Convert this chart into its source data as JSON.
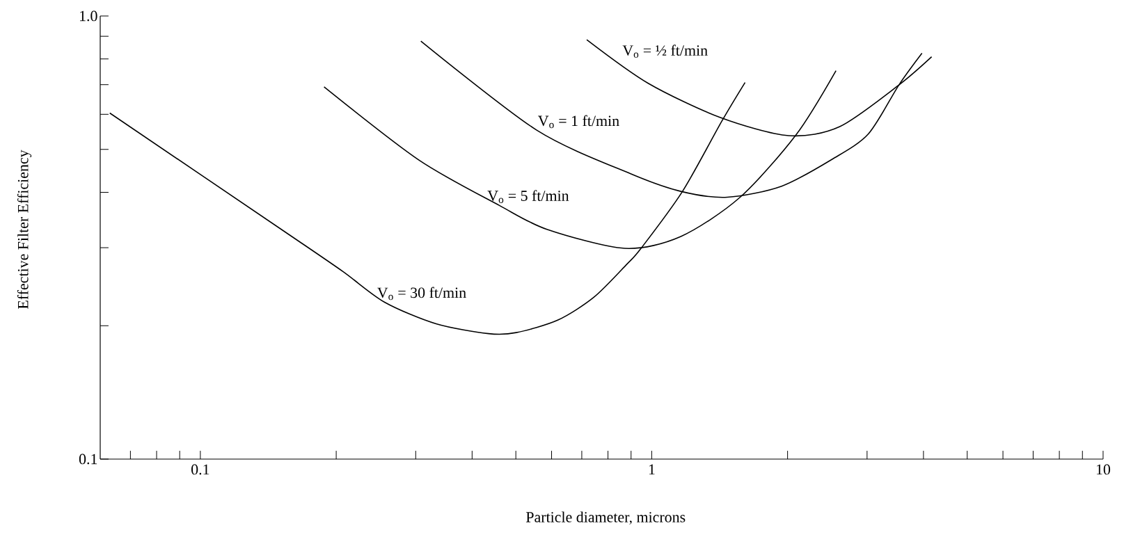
{
  "chart_data": {
    "type": "line",
    "log": "xy",
    "xlabel": "Particle diameter, microns",
    "ylabel": "Effective Filter Efficiency",
    "xlim": [
      0.06,
      10
    ],
    "ylim": [
      0.1,
      1.0
    ],
    "xticks": [
      {
        "value": 0.07,
        "label": null
      },
      {
        "value": 0.08,
        "label": null
      },
      {
        "value": 0.09,
        "label": null
      },
      0.1,
      {
        "value": 0.2,
        "label": null
      },
      {
        "value": 0.3,
        "label": null
      },
      {
        "value": 0.4,
        "label": null
      },
      {
        "value": 0.5,
        "label": null
      },
      {
        "value": 0.6,
        "label": null
      },
      {
        "value": 0.7,
        "label": null
      },
      {
        "value": 0.8,
        "label": null
      },
      {
        "value": 0.9,
        "label": null
      },
      1,
      {
        "value": 2,
        "label": null
      },
      {
        "value": 3,
        "label": null
      },
      {
        "value": 4,
        "label": null
      },
      {
        "value": 5,
        "label": null
      },
      {
        "value": 6,
        "label": null
      },
      {
        "value": 7,
        "label": null
      },
      {
        "value": 8,
        "label": null
      },
      {
        "value": 9,
        "label": null
      },
      10
    ],
    "yticks": [
      0.1,
      {
        "value": 0.2,
        "label": null
      },
      {
        "value": 0.3,
        "label": null
      },
      {
        "value": 0.4,
        "label": null
      },
      {
        "value": 0.5,
        "label": null
      },
      {
        "value": 0.6,
        "label": null
      },
      {
        "value": 0.7,
        "label": null
      },
      {
        "value": 0.8,
        "label": null
      },
      {
        "value": 0.9,
        "label": null
      },
      {
        "value": 1,
        "label": "1.0"
      }
    ],
    "series": [
      {
        "name": "V$_{o}$ = 30 ft/min",
        "color": "#000000",
        "x": [
          0.063,
          0.158,
          0.207,
          0.256,
          0.333,
          0.435,
          0.501,
          0.62,
          0.745,
          0.88,
          0.947,
          1.17,
          1.43,
          1.61
        ],
        "values": [
          0.604,
          0.32,
          0.265,
          0.226,
          0.202,
          0.192,
          0.193,
          0.206,
          0.232,
          0.275,
          0.299,
          0.402,
          0.579,
          0.708
        ]
      },
      {
        "name": "V$_{o}$ = 5 ft/min",
        "color": "#000000",
        "x": [
          0.188,
          0.305,
          0.459,
          0.586,
          0.871,
          1.16,
          1.57,
          2.09,
          2.56
        ],
        "values": [
          0.692,
          0.473,
          0.374,
          0.33,
          0.299,
          0.318,
          0.39,
          0.54,
          0.753
        ]
      },
      {
        "name": "V$_{o}$ = 1 ft/min",
        "color": "#000000",
        "x": [
          0.308,
          0.557,
          0.896,
          1.16,
          1.47,
          1.94,
          2.51,
          3.02,
          3.53,
          3.97
        ],
        "values": [
          0.878,
          0.552,
          0.441,
          0.402,
          0.39,
          0.413,
          0.475,
          0.542,
          0.699,
          0.824
        ]
      },
      {
        "name": "V$_{o}$ = ½ ft/min",
        "color": "#000000",
        "x": [
          0.718,
          0.982,
          1.42,
          2.01,
          2.61,
          3.53,
          4.17
        ],
        "values": [
          0.884,
          0.705,
          0.59,
          0.537,
          0.563,
          0.699,
          0.809
        ]
      }
    ]
  }
}
